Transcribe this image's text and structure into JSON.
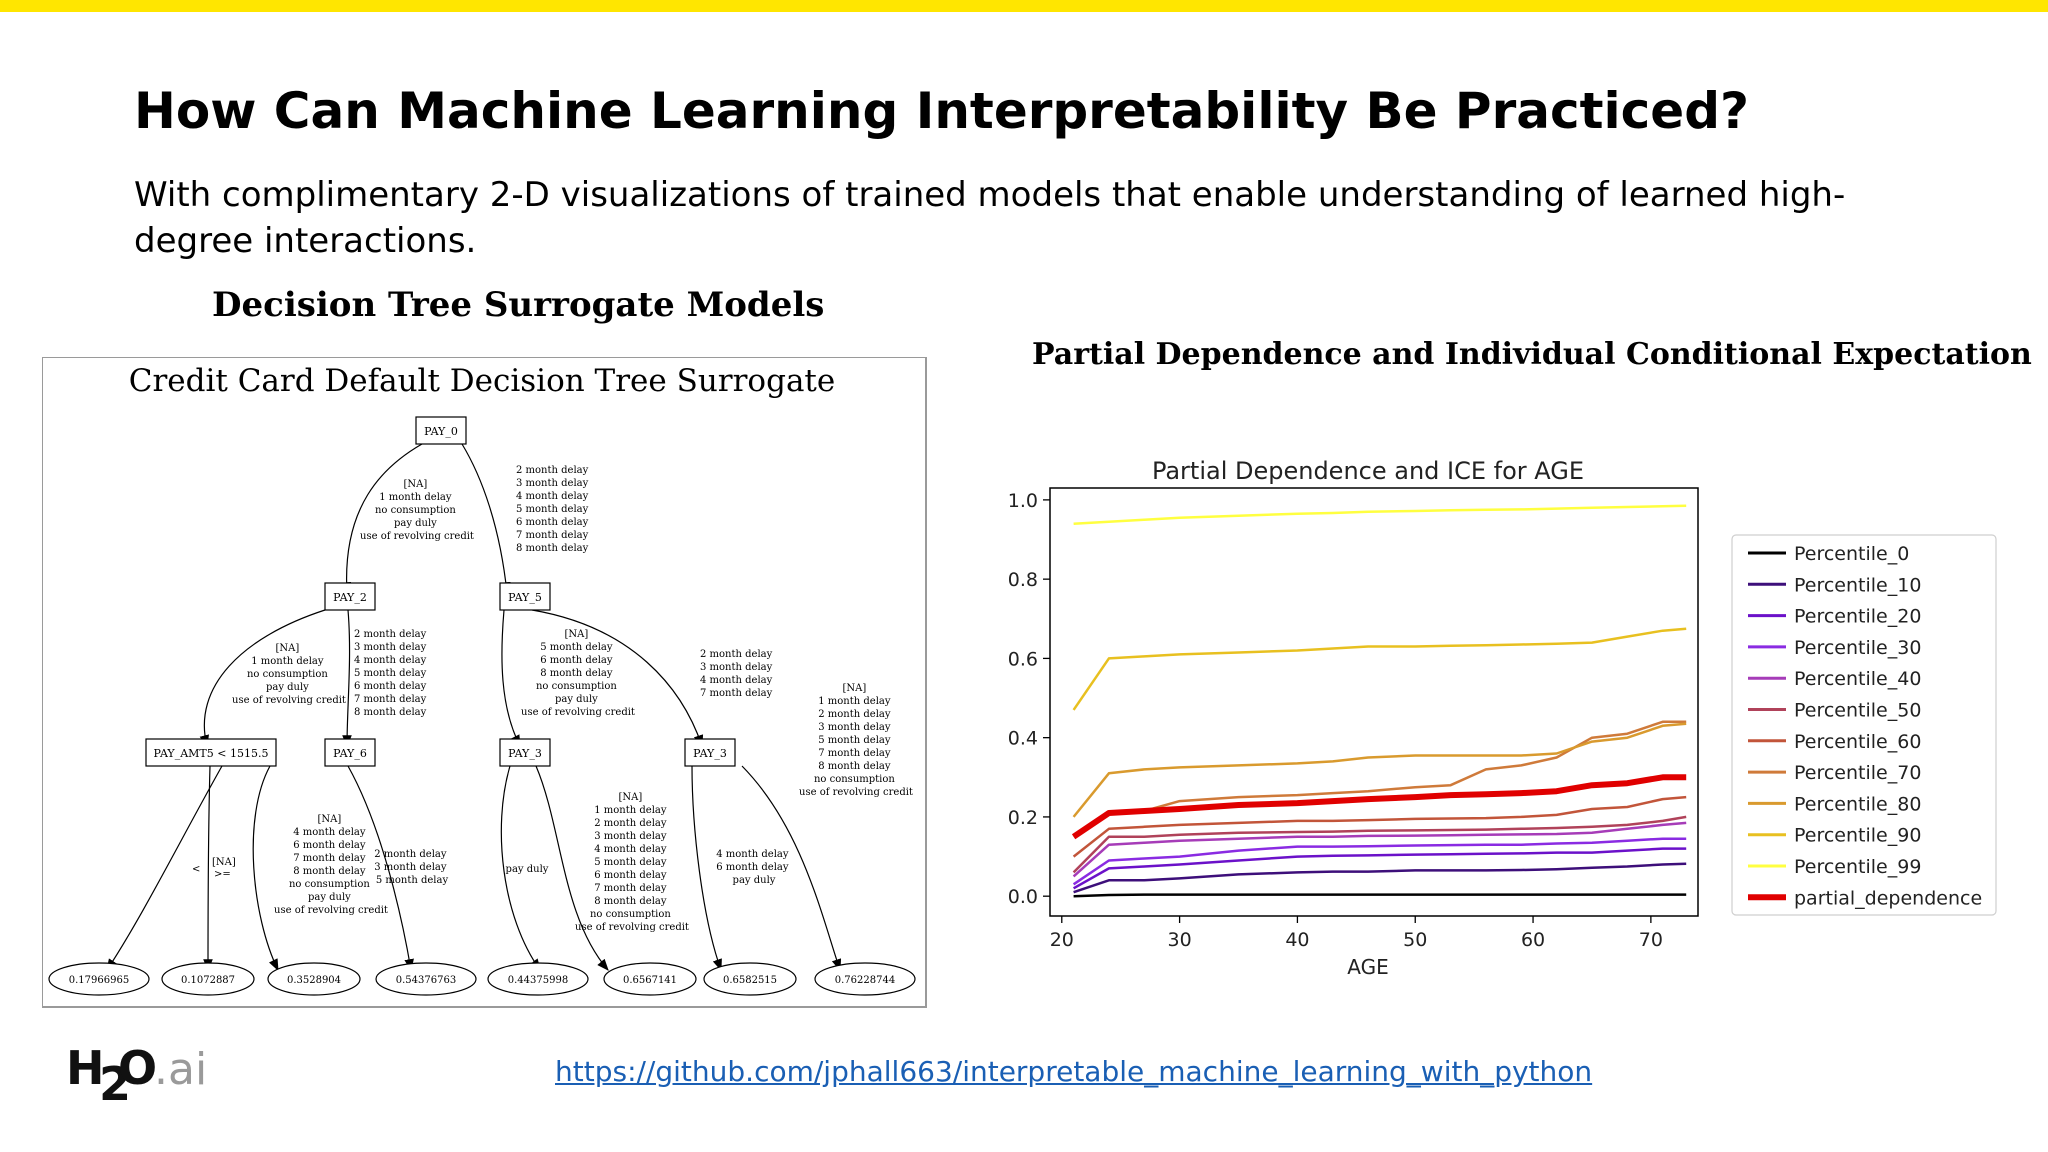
{
  "colors": {
    "accent": "#ffe600",
    "link": "#1a5fb4",
    "pd_line": "#e00000"
  },
  "slide": {
    "title": "How Can Machine Learning Interpretability Be Practiced?",
    "subtitle": "With complimentary 2-D visualizations of trained models that enable understanding of learned high-degree interactions.",
    "left_section_title": "Decision Tree Surrogate Models",
    "right_section_title": "Partial Dependence and Individual Conditional Expectation",
    "logo": {
      "main": "H",
      "sub": "2",
      "main2": "O",
      "suffix": ".ai"
    },
    "link": "https://github.com/jphall663/interpretable_machine_learning_with_python"
  },
  "tree": {
    "title": "Credit Card Default Decision Tree Surrogate",
    "nodes": {
      "pay0": "PAY_0",
      "pay2": "PAY_2",
      "pay5": "PAY_5",
      "payamt5": "PAY_AMT5 < 1515.5",
      "pay6": "PAY_6",
      "pay3a": "PAY_3",
      "pay3b": "PAY_3"
    },
    "edges": {
      "pay0_left": [
        "[NA]",
        "1 month delay",
        "no consumption",
        "pay duly",
        "use of revolving credit"
      ],
      "pay0_right": [
        "2 month delay",
        "3 month delay",
        "4 month delay",
        "5 month delay",
        "6 month delay",
        "7 month delay",
        "8 month delay"
      ],
      "pay2_left": [
        "[NA]",
        "1 month delay",
        "no consumption",
        "pay duly",
        "use of revolving credit"
      ],
      "pay2_right": [
        "2 month delay",
        "3 month delay",
        "4 month delay",
        "5 month delay",
        "6 month delay",
        "7 month delay",
        "8 month delay"
      ],
      "pay5_left": [
        "[NA]",
        "5 month delay",
        "6 month delay",
        "8 month delay",
        "no consumption",
        "pay duly",
        "use of revolving credit"
      ],
      "pay5_right": [
        "2 month delay",
        "3 month delay",
        "4 month delay",
        "7 month delay"
      ],
      "payamt5_left": "<",
      "payamt5_right": [
        "[NA]",
        ">="
      ],
      "pay6_left": [
        "[NA]",
        "4 month delay",
        "6 month delay",
        "7 month delay",
        "8 month delay",
        "no consumption",
        "pay duly",
        "use of revolving credit"
      ],
      "pay6_right": [
        "2 month delay",
        "3 month delay",
        "5 month delay"
      ],
      "pay3a_left": "pay duly",
      "pay3a_right": [
        "[NA]",
        "1 month delay",
        "2 month delay",
        "3 month delay",
        "4 month delay",
        "5 month delay",
        "6 month delay",
        "7 month delay",
        "8 month delay",
        "no consumption",
        "use of revolving credit"
      ],
      "pay3b_left": [
        "4 month delay",
        "6 month delay",
        "pay duly"
      ],
      "pay3b_right": [
        "[NA]",
        "1 month delay",
        "2 month delay",
        "3 month delay",
        "5 month delay",
        "7 month delay",
        "8 month delay",
        "no consumption",
        "use of revolving credit"
      ]
    },
    "leaves": [
      "0.17966965",
      "0.1072887",
      "0.3528904",
      "0.54376763",
      "0.44375998",
      "0.6567141",
      "0.6582515",
      "0.76228744"
    ]
  },
  "chart_data": {
    "type": "line",
    "title": "Partial Dependence and ICE for AGE",
    "xlabel": "AGE",
    "ylabel": "",
    "xlim": [
      19,
      74
    ],
    "ylim": [
      -0.05,
      1.03
    ],
    "xticks": [
      20,
      30,
      40,
      50,
      60,
      70
    ],
    "yticks": [
      0.0,
      0.2,
      0.4,
      0.6,
      0.8,
      1.0
    ],
    "grid": false,
    "legend_position": "right",
    "x": [
      21,
      24,
      27,
      30,
      35,
      40,
      43,
      46,
      50,
      53,
      56,
      59,
      62,
      65,
      68,
      71,
      73
    ],
    "series": [
      {
        "name": "Percentile_0",
        "color": "#000000",
        "values": [
          0.0,
          0.003,
          0.004,
          0.004,
          0.004,
          0.004,
          0.004,
          0.004,
          0.004,
          0.004,
          0.004,
          0.004,
          0.004,
          0.004,
          0.004,
          0.004,
          0.004
        ]
      },
      {
        "name": "Percentile_10",
        "color": "#3d0f7a",
        "values": [
          0.01,
          0.04,
          0.04,
          0.045,
          0.055,
          0.06,
          0.062,
          0.062,
          0.065,
          0.065,
          0.065,
          0.066,
          0.068,
          0.072,
          0.075,
          0.08,
          0.082
        ]
      },
      {
        "name": "Percentile_20",
        "color": "#6b11c9",
        "values": [
          0.02,
          0.07,
          0.075,
          0.08,
          0.09,
          0.1,
          0.102,
          0.103,
          0.105,
          0.106,
          0.107,
          0.108,
          0.11,
          0.11,
          0.115,
          0.12,
          0.12
        ]
      },
      {
        "name": "Percentile_30",
        "color": "#8a2be2",
        "values": [
          0.03,
          0.09,
          0.095,
          0.1,
          0.115,
          0.125,
          0.125,
          0.126,
          0.128,
          0.129,
          0.13,
          0.13,
          0.133,
          0.135,
          0.14,
          0.145,
          0.145
        ]
      },
      {
        "name": "Percentile_40",
        "color": "#a63cb8",
        "values": [
          0.05,
          0.13,
          0.135,
          0.14,
          0.145,
          0.15,
          0.15,
          0.152,
          0.153,
          0.154,
          0.155,
          0.156,
          0.157,
          0.16,
          0.17,
          0.18,
          0.185
        ]
      },
      {
        "name": "Percentile_50",
        "color": "#b0425a",
        "values": [
          0.06,
          0.15,
          0.15,
          0.155,
          0.16,
          0.162,
          0.163,
          0.165,
          0.166,
          0.167,
          0.168,
          0.17,
          0.172,
          0.175,
          0.18,
          0.19,
          0.2
        ]
      },
      {
        "name": "Percentile_60",
        "color": "#c2553a",
        "values": [
          0.1,
          0.17,
          0.175,
          0.18,
          0.185,
          0.19,
          0.19,
          0.192,
          0.195,
          0.196,
          0.197,
          0.2,
          0.205,
          0.22,
          0.225,
          0.245,
          0.25
        ]
      },
      {
        "name": "Percentile_70",
        "color": "#cf7a3a",
        "values": [
          0.15,
          0.21,
          0.215,
          0.24,
          0.25,
          0.255,
          0.26,
          0.265,
          0.275,
          0.28,
          0.32,
          0.33,
          0.35,
          0.4,
          0.41,
          0.44,
          0.44
        ]
      },
      {
        "name": "Percentile_80",
        "color": "#d99a2e",
        "values": [
          0.2,
          0.31,
          0.32,
          0.325,
          0.33,
          0.335,
          0.34,
          0.35,
          0.355,
          0.355,
          0.355,
          0.355,
          0.36,
          0.39,
          0.4,
          0.43,
          0.435
        ]
      },
      {
        "name": "Percentile_90",
        "color": "#e8c020",
        "values": [
          0.47,
          0.6,
          0.605,
          0.61,
          0.615,
          0.62,
          0.625,
          0.63,
          0.63,
          0.632,
          0.633,
          0.635,
          0.637,
          0.64,
          0.655,
          0.67,
          0.675
        ]
      },
      {
        "name": "Percentile_99",
        "color": "#ffff40",
        "values": [
          0.94,
          0.945,
          0.95,
          0.955,
          0.96,
          0.965,
          0.967,
          0.97,
          0.972,
          0.974,
          0.975,
          0.976,
          0.978,
          0.98,
          0.982,
          0.984,
          0.985
        ]
      },
      {
        "name": "partial_dependence",
        "color": "#e00000",
        "values": [
          0.15,
          0.21,
          0.215,
          0.22,
          0.23,
          0.235,
          0.24,
          0.245,
          0.25,
          0.255,
          0.257,
          0.26,
          0.265,
          0.28,
          0.285,
          0.3,
          0.3
        ]
      }
    ]
  }
}
